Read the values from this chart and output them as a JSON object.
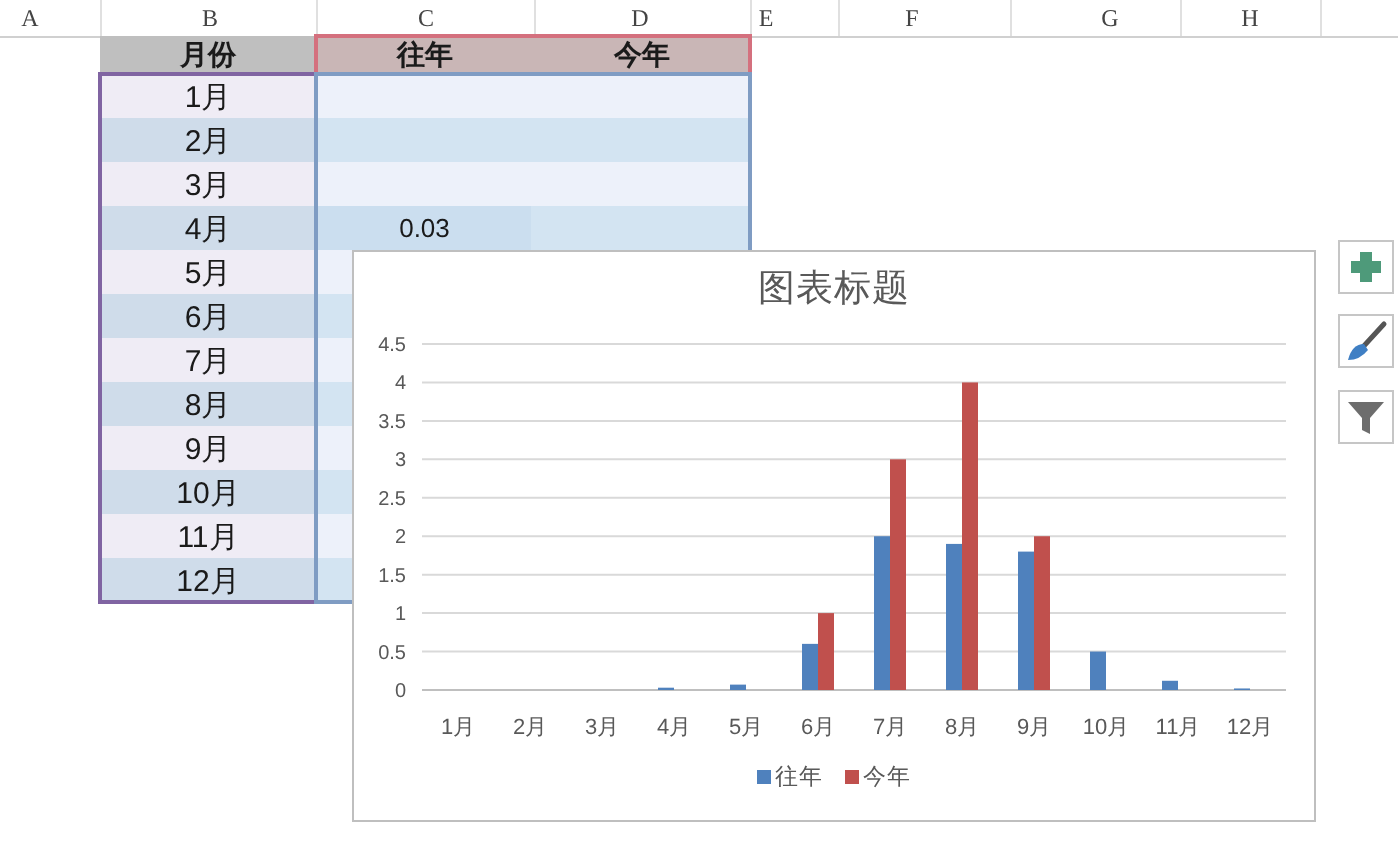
{
  "chart_data": [
    {
      "type": "heatmap",
      "annotations": [
        "A",
        "B",
        "C",
        "D",
        "E",
        "F",
        "G",
        "H"
      ],
      "ylabel": "月份",
      "categories": [
        "往年",
        "今年"
      ],
      "y_categories": [
        "1月",
        "2月",
        "3月",
        "4月",
        "5月",
        "6月",
        "7月",
        "8月",
        "9月",
        "10月",
        "11月",
        "12月"
      ],
      "cells": [
        [
          null,
          null
        ],
        [
          null,
          null
        ],
        [
          null,
          null
        ],
        [
          0.03,
          null
        ],
        [
          null,
          null
        ],
        [
          null,
          null
        ],
        [
          null,
          null
        ],
        [
          null,
          null
        ],
        [
          null,
          null
        ],
        [
          null,
          null
        ],
        [
          null,
          null
        ],
        [
          null,
          null
        ]
      ],
      "cell_labels": [
        [
          null,
          null
        ],
        [
          null,
          null
        ],
        [
          null,
          null
        ],
        [
          "0.03",
          null
        ],
        [
          null,
          null
        ],
        [
          null,
          null
        ],
        [
          null,
          null
        ],
        [
          null,
          null
        ],
        [
          null,
          null
        ],
        [
          null,
          null
        ],
        [
          null,
          null
        ],
        [
          null,
          null
        ]
      ]
    },
    {
      "type": "bar",
      "title": "图表标题",
      "categories": [
        "1月",
        "2月",
        "3月",
        "4月",
        "5月",
        "6月",
        "7月",
        "8月",
        "9月",
        "10月",
        "11月",
        "12月"
      ],
      "series": [
        {
          "name": "往年",
          "color": "#4f81bd",
          "values": [
            null,
            null,
            null,
            0.03,
            0.07,
            0.6,
            2,
            1.9,
            1.8,
            0.5,
            0.12,
            0.02
          ]
        },
        {
          "name": "今年",
          "color": "#c0504d",
          "values": [
            null,
            null,
            null,
            null,
            null,
            1,
            3,
            4,
            2,
            null,
            null,
            null
          ]
        }
      ],
      "ylim": [
        0,
        4.5
      ],
      "yticks": [
        0,
        0.5,
        1,
        1.5,
        2,
        2.5,
        3,
        3.5,
        4,
        4.5
      ],
      "grid": "y",
      "legend": "bottom"
    }
  ]
}
